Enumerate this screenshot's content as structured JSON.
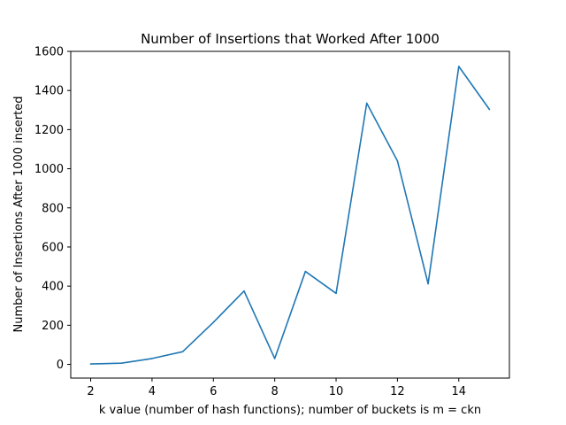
{
  "chart_data": {
    "type": "line",
    "title": "Number of Insertions that Worked After 1000",
    "xlabel": "k value (number of hash functions); number of buckets is m = ckn",
    "ylabel": "Number of Insertions After 1000 inserted",
    "xlim": [
      1.35,
      15.65
    ],
    "ylim": [
      -70,
      1600
    ],
    "xticks": [
      2,
      4,
      6,
      8,
      10,
      12,
      14
    ],
    "xtick_labels": [
      "2",
      "4",
      "6",
      "8",
      "10",
      "12",
      "14"
    ],
    "yticks": [
      0,
      200,
      400,
      600,
      800,
      1000,
      1200,
      1400,
      1600
    ],
    "ytick_labels": [
      "0",
      "200",
      "400",
      "600",
      "800",
      "1000",
      "1200",
      "1400",
      "1600"
    ],
    "grid": false,
    "series": [
      {
        "color": "#1f77b4",
        "x": [
          2,
          3,
          4,
          5,
          6,
          7,
          8,
          9,
          10,
          11,
          12,
          13,
          14,
          15
        ],
        "y": [
          2,
          6,
          30,
          65,
          215,
          375,
          30,
          475,
          363,
          1335,
          1040,
          412,
          1523,
          1303
        ]
      }
    ]
  }
}
